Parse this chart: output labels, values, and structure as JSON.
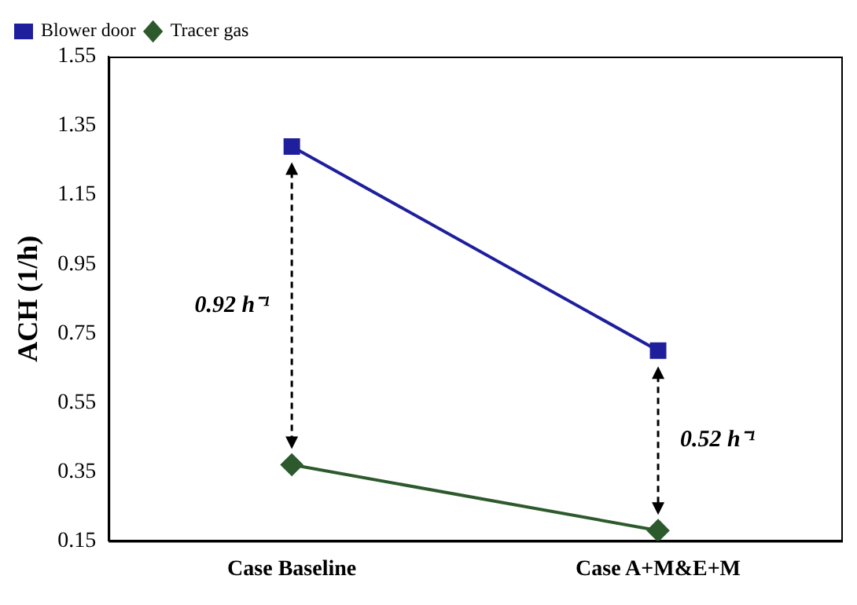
{
  "chart_data": {
    "type": "line",
    "ylabel": "ACH (1/h)",
    "categories": [
      "Case Baseline",
      "Case A+M&E+M"
    ],
    "series": [
      {
        "name": "Blower door",
        "color": "#1f1f9e",
        "values": [
          1.29,
          0.7
        ],
        "marker": "square"
      },
      {
        "name": "Tracer gas",
        "color": "#2d5a2d",
        "values": [
          0.37,
          0.18
        ],
        "marker": "diamond"
      }
    ],
    "ylim": [
      0.15,
      1.55
    ],
    "yticks": [
      {
        "value": 0.15,
        "label": "0.15"
      },
      {
        "value": 0.35,
        "label": "0.35"
      },
      {
        "value": 0.55,
        "label": "0.55"
      },
      {
        "value": 0.75,
        "label": "0.75"
      },
      {
        "value": 0.95,
        "label": "0.95"
      },
      {
        "value": 1.15,
        "label": "1.15"
      },
      {
        "value": 1.35,
        "label": "1.35"
      },
      {
        "value": 1.55,
        "label": "1.55"
      }
    ],
    "grid": false,
    "legend": "top left",
    "line_style": "solid",
    "annotations": [
      "0.92 h⁻¹",
      "0.52 h⁻¹"
    ]
  }
}
